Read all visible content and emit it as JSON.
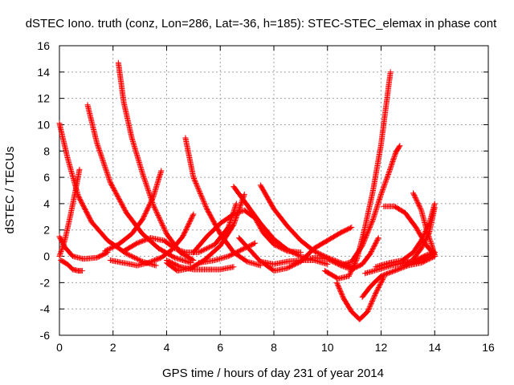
{
  "chart_data": {
    "type": "scatter",
    "title": "dSTEC Iono. truth (conz, Lon=286, Lat=-36, h=185): STEC-STEC_elemax in phase cont",
    "xlabel": "GPS time / hours of day 231 of year 2014",
    "ylabel": "dSTEC  / TECUs",
    "xlim": [
      0,
      16
    ],
    "ylim": [
      -6,
      16
    ],
    "xticks": [
      0,
      2,
      4,
      6,
      8,
      10,
      12,
      14,
      16
    ],
    "yticks": [
      -6,
      -4,
      -2,
      0,
      2,
      4,
      6,
      8,
      10,
      12,
      14,
      16
    ],
    "grid": true,
    "marker": "plus",
    "color": "#ff0000",
    "series": [
      {
        "points": [
          [
            0.0,
            10.1
          ],
          [
            0.3,
            7.5
          ],
          [
            0.7,
            4.6
          ],
          [
            1.2,
            2.6
          ],
          [
            1.8,
            1.2
          ],
          [
            2.5,
            0.2
          ],
          [
            3.1,
            -0.4
          ],
          [
            3.6,
            -0.7
          ]
        ]
      },
      {
        "points": [
          [
            0.05,
            -0.3
          ],
          [
            0.3,
            -0.6
          ],
          [
            0.5,
            -1.0
          ],
          [
            0.7,
            -1.1
          ],
          [
            0.85,
            -1.1
          ]
        ]
      },
      {
        "points": [
          [
            0.0,
            0.0
          ],
          [
            0.2,
            1.2
          ],
          [
            0.4,
            3.0
          ],
          [
            0.6,
            5.0
          ],
          [
            0.75,
            6.6
          ]
        ]
      },
      {
        "points": [
          [
            0.0,
            1.5
          ],
          [
            0.2,
            0.7
          ],
          [
            0.5,
            0.0
          ],
          [
            0.9,
            -0.2
          ],
          [
            1.4,
            -0.1
          ],
          [
            1.8,
            0.3
          ]
        ]
      },
      {
        "points": [
          [
            1.05,
            11.5
          ],
          [
            1.4,
            8.6
          ],
          [
            1.9,
            5.6
          ],
          [
            2.5,
            3.3
          ],
          [
            3.1,
            1.7
          ],
          [
            3.7,
            0.6
          ],
          [
            4.3,
            -0.1
          ],
          [
            4.9,
            -0.5
          ]
        ]
      },
      {
        "points": [
          [
            1.7,
            0.4
          ],
          [
            2.2,
            0.9
          ],
          [
            2.7,
            1.7
          ],
          [
            3.1,
            2.8
          ],
          [
            3.5,
            4.5
          ],
          [
            3.8,
            6.5
          ]
        ]
      },
      {
        "points": [
          [
            1.9,
            -0.3
          ],
          [
            2.4,
            -0.5
          ],
          [
            2.9,
            -0.7
          ],
          [
            3.3,
            -0.5
          ],
          [
            3.8,
            -0.1
          ],
          [
            4.2,
            0.5
          ],
          [
            4.6,
            1.5
          ],
          [
            5.0,
            3.2
          ]
        ]
      },
      {
        "points": [
          [
            2.2,
            14.7
          ],
          [
            2.4,
            11.7
          ],
          [
            2.7,
            9.0
          ],
          [
            3.1,
            6.3
          ],
          [
            3.5,
            3.9
          ],
          [
            4.0,
            1.7
          ],
          [
            4.5,
            0.3
          ],
          [
            5.0,
            -0.3
          ]
        ]
      },
      {
        "points": [
          [
            2.4,
            0.4
          ],
          [
            2.9,
            1.0
          ],
          [
            3.4,
            1.4
          ],
          [
            3.9,
            1.2
          ],
          [
            4.3,
            0.6
          ],
          [
            4.7,
            0.3
          ],
          [
            5.2,
            0.3
          ],
          [
            5.8,
            0.9
          ],
          [
            6.3,
            2.2
          ],
          [
            6.6,
            4.0
          ]
        ]
      },
      {
        "points": [
          [
            4.0,
            -0.3
          ],
          [
            4.5,
            -0.8
          ],
          [
            5.0,
            -1.0
          ],
          [
            5.5,
            -1.0
          ],
          [
            6.0,
            -1.0
          ],
          [
            6.5,
            -0.8
          ]
        ]
      },
      {
        "points": [
          [
            4.0,
            -0.5
          ],
          [
            4.4,
            -1.1
          ],
          [
            4.9,
            -0.9
          ],
          [
            5.4,
            -0.3
          ],
          [
            6.0,
            0.8
          ],
          [
            6.5,
            2.4
          ],
          [
            6.9,
            4.7
          ]
        ]
      },
      {
        "points": [
          [
            4.7,
            9.0
          ],
          [
            5.0,
            6.0
          ],
          [
            5.5,
            3.6
          ],
          [
            6.0,
            1.7
          ],
          [
            6.5,
            0.3
          ],
          [
            7.0,
            -0.4
          ],
          [
            7.5,
            -0.7
          ]
        ]
      },
      {
        "points": [
          [
            5.0,
            0.3
          ],
          [
            5.5,
            1.5
          ],
          [
            6.0,
            2.5
          ],
          [
            6.5,
            3.2
          ],
          [
            6.9,
            3.5
          ],
          [
            7.3,
            2.9
          ],
          [
            7.6,
            1.8
          ],
          [
            8.0,
            0.9
          ],
          [
            8.5,
            0.4
          ],
          [
            9.0,
            0.3
          ]
        ]
      },
      {
        "points": [
          [
            5.2,
            -0.5
          ],
          [
            5.8,
            -0.3
          ],
          [
            6.3,
            0.0
          ],
          [
            6.8,
            0.5
          ],
          [
            7.3,
            1.0
          ]
        ]
      },
      {
        "points": [
          [
            6.5,
            5.3
          ],
          [
            7.0,
            3.9
          ],
          [
            7.5,
            2.5
          ],
          [
            8.0,
            1.3
          ],
          [
            8.5,
            0.5
          ],
          [
            9.0,
            0.0
          ],
          [
            9.5,
            -0.3
          ],
          [
            10.0,
            -0.6
          ]
        ]
      },
      {
        "points": [
          [
            6.7,
            1.4
          ],
          [
            7.1,
            0.5
          ],
          [
            7.5,
            -0.4
          ],
          [
            8.0,
            -0.6
          ],
          [
            8.5,
            -0.4
          ],
          [
            9.0,
            -0.3
          ],
          [
            9.5,
            -0.3
          ]
        ]
      },
      {
        "points": [
          [
            7.5,
            5.4
          ],
          [
            8.0,
            3.6
          ],
          [
            8.5,
            2.3
          ],
          [
            9.0,
            1.2
          ],
          [
            9.5,
            0.4
          ],
          [
            10.0,
            -0.1
          ],
          [
            10.5,
            -0.5
          ],
          [
            11.0,
            -0.9
          ]
        ]
      },
      {
        "points": [
          [
            7.6,
            -0.5
          ],
          [
            8.0,
            -1.1
          ],
          [
            8.5,
            -0.9
          ],
          [
            9.0,
            -0.4
          ],
          [
            9.5,
            0.6
          ],
          [
            10.0,
            1.2
          ],
          [
            10.5,
            1.8
          ],
          [
            10.9,
            2.2
          ]
        ]
      },
      {
        "points": [
          [
            9.0,
            -0.3
          ],
          [
            9.5,
            -0.1
          ],
          [
            10.0,
            -0.2
          ],
          [
            10.5,
            -0.7
          ],
          [
            10.9,
            -1.0
          ],
          [
            11.3,
            -0.6
          ],
          [
            11.6,
            0.2
          ],
          [
            11.9,
            1.4
          ]
        ]
      },
      {
        "points": [
          [
            9.9,
            -1.1
          ],
          [
            10.4,
            -1.7
          ],
          [
            10.8,
            -1.5
          ],
          [
            11.1,
            -0.2
          ],
          [
            11.4,
            2.2
          ],
          [
            11.7,
            5.0
          ],
          [
            12.0,
            8.5
          ],
          [
            12.35,
            14.0
          ]
        ]
      },
      {
        "points": [
          [
            10.35,
            -2.0
          ],
          [
            10.6,
            -3.2
          ],
          [
            10.9,
            -4.2
          ],
          [
            11.2,
            -4.8
          ],
          [
            11.5,
            -4.2
          ],
          [
            11.8,
            -2.8
          ],
          [
            12.1,
            -1.6
          ]
        ]
      },
      {
        "points": [
          [
            10.5,
            -0.7
          ],
          [
            10.9,
            -0.4
          ],
          [
            11.3,
            0.8
          ],
          [
            11.7,
            2.8
          ],
          [
            12.0,
            4.7
          ],
          [
            12.3,
            6.4
          ],
          [
            12.55,
            7.9
          ],
          [
            12.7,
            8.4
          ]
        ]
      },
      {
        "points": [
          [
            11.3,
            -3.1
          ],
          [
            11.6,
            -2.3
          ],
          [
            12.0,
            -1.5
          ],
          [
            12.5,
            -1.1
          ],
          [
            13.0,
            -0.7
          ],
          [
            13.5,
            -0.5
          ],
          [
            14.0,
            0.0
          ]
        ]
      },
      {
        "points": [
          [
            11.4,
            -1.3
          ],
          [
            11.9,
            -1.0
          ],
          [
            12.4,
            -0.7
          ],
          [
            12.9,
            -0.5
          ],
          [
            13.3,
            -0.3
          ],
          [
            13.7,
            0.1
          ],
          [
            14.0,
            0.3
          ]
        ]
      },
      {
        "points": [
          [
            11.8,
            -0.8
          ],
          [
            12.3,
            -0.5
          ],
          [
            12.8,
            -0.3
          ],
          [
            13.2,
            0.3
          ],
          [
            13.5,
            1.2
          ],
          [
            13.8,
            2.5
          ],
          [
            14.0,
            4.0
          ]
        ]
      },
      {
        "points": [
          [
            12.1,
            3.8
          ],
          [
            12.5,
            3.8
          ],
          [
            12.9,
            3.3
          ],
          [
            13.3,
            2.2
          ],
          [
            13.7,
            0.8
          ],
          [
            14.0,
            0.1
          ]
        ]
      },
      {
        "points": [
          [
            13.2,
            4.8
          ],
          [
            13.5,
            3.5
          ],
          [
            13.7,
            2.0
          ],
          [
            13.9,
            0.8
          ],
          [
            14.0,
            0.1
          ]
        ]
      },
      {
        "points": [
          [
            13.2,
            -0.2
          ],
          [
            13.5,
            0.6
          ],
          [
            13.8,
            1.8
          ],
          [
            14.0,
            3.7
          ]
        ]
      },
      {
        "points": [
          [
            12.8,
            -0.5
          ],
          [
            13.2,
            -0.4
          ],
          [
            13.6,
            -0.2
          ],
          [
            14.0,
            0.3
          ]
        ]
      }
    ]
  }
}
